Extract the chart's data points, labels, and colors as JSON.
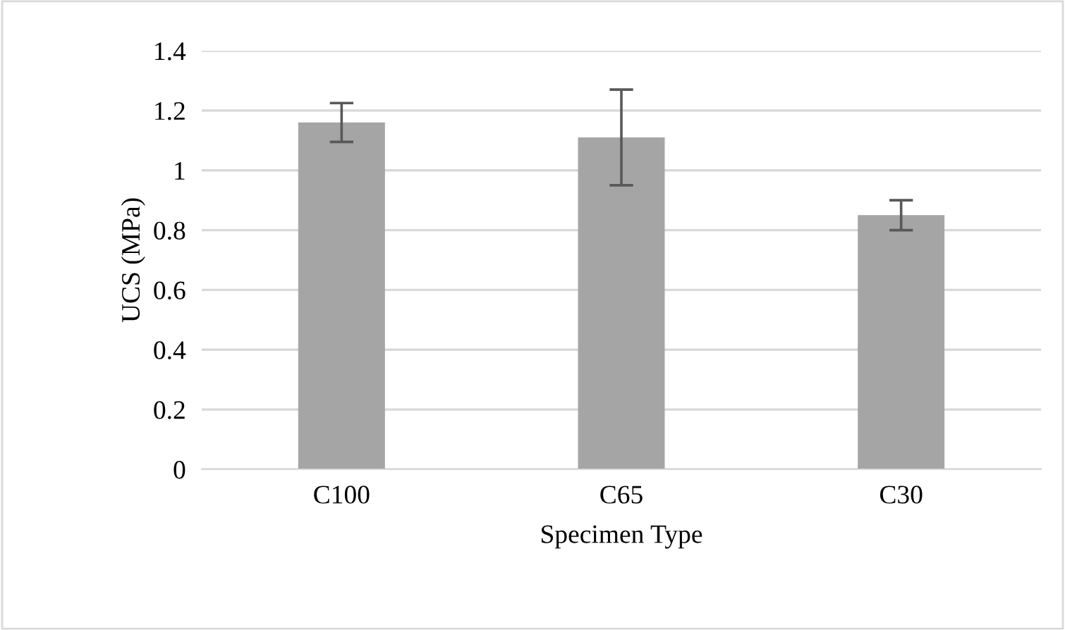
{
  "chart_data": {
    "type": "bar",
    "xlabel": "Specimen Type",
    "ylabel": "UCS (MPa)",
    "categories": [
      "C100",
      "C65",
      "C30"
    ],
    "values": [
      1.16,
      1.11,
      0.85
    ],
    "errors": [
      0.065,
      0.16,
      0.05
    ],
    "color": "#a5a5a5",
    "ylim": [
      0,
      1.4
    ],
    "yticks": [
      0,
      0.2,
      0.4,
      0.6,
      0.8,
      1,
      1.2,
      1.4
    ],
    "grid": "y"
  }
}
